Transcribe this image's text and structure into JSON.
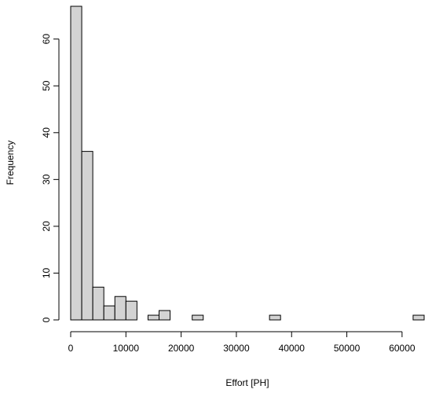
{
  "chart_data": {
    "type": "bar",
    "subtype": "histogram",
    "title": "",
    "xlabel": "Effort [PH]",
    "ylabel": "Frequency",
    "bin_width": 2000,
    "bins": [
      {
        "start": 0,
        "end": 2000,
        "count": 67
      },
      {
        "start": 2000,
        "end": 4000,
        "count": 36
      },
      {
        "start": 4000,
        "end": 6000,
        "count": 7
      },
      {
        "start": 6000,
        "end": 8000,
        "count": 3
      },
      {
        "start": 8000,
        "end": 10000,
        "count": 5
      },
      {
        "start": 10000,
        "end": 12000,
        "count": 4
      },
      {
        "start": 12000,
        "end": 14000,
        "count": 0
      },
      {
        "start": 14000,
        "end": 16000,
        "count": 1
      },
      {
        "start": 16000,
        "end": 18000,
        "count": 2
      },
      {
        "start": 18000,
        "end": 20000,
        "count": 0
      },
      {
        "start": 20000,
        "end": 22000,
        "count": 0
      },
      {
        "start": 22000,
        "end": 24000,
        "count": 1
      },
      {
        "start": 24000,
        "end": 26000,
        "count": 0
      },
      {
        "start": 26000,
        "end": 28000,
        "count": 0
      },
      {
        "start": 28000,
        "end": 30000,
        "count": 0
      },
      {
        "start": 30000,
        "end": 32000,
        "count": 0
      },
      {
        "start": 32000,
        "end": 34000,
        "count": 0
      },
      {
        "start": 34000,
        "end": 36000,
        "count": 0
      },
      {
        "start": 36000,
        "end": 38000,
        "count": 1
      },
      {
        "start": 38000,
        "end": 40000,
        "count": 0
      },
      {
        "start": 40000,
        "end": 42000,
        "count": 0
      },
      {
        "start": 42000,
        "end": 44000,
        "count": 0
      },
      {
        "start": 44000,
        "end": 46000,
        "count": 0
      },
      {
        "start": 46000,
        "end": 48000,
        "count": 0
      },
      {
        "start": 48000,
        "end": 50000,
        "count": 0
      },
      {
        "start": 50000,
        "end": 52000,
        "count": 0
      },
      {
        "start": 52000,
        "end": 54000,
        "count": 0
      },
      {
        "start": 54000,
        "end": 56000,
        "count": 0
      },
      {
        "start": 56000,
        "end": 58000,
        "count": 0
      },
      {
        "start": 58000,
        "end": 60000,
        "count": 0
      },
      {
        "start": 60000,
        "end": 62000,
        "count": 0
      },
      {
        "start": 62000,
        "end": 64000,
        "count": 1
      }
    ],
    "x_ticks": [
      0,
      10000,
      20000,
      30000,
      40000,
      50000,
      60000
    ],
    "x_tick_labels": [
      "0",
      "10000",
      "20000",
      "30000",
      "40000",
      "50000",
      "60000"
    ],
    "y_ticks": [
      0,
      10,
      20,
      30,
      40,
      50,
      60
    ],
    "y_tick_labels": [
      "0",
      "10",
      "20",
      "30",
      "40",
      "50",
      "60"
    ],
    "xlim": [
      0,
      64000
    ],
    "ylim": [
      0,
      67
    ],
    "grid": false,
    "colors": {
      "bar_fill": "#d3d3d3",
      "bar_stroke": "#000000"
    }
  }
}
